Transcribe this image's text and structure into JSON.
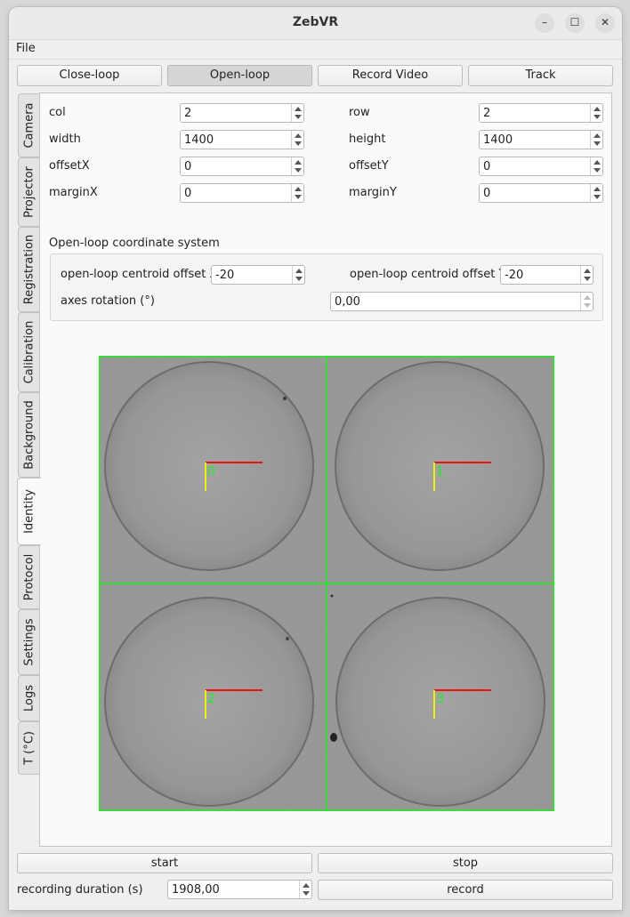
{
  "window": {
    "title": "ZebVR",
    "minimize_glyph": "–",
    "maximize_glyph": "☐",
    "close_glyph": "✕"
  },
  "menu": {
    "file": "File"
  },
  "mode_buttons": {
    "close_loop": "Close-loop",
    "open_loop": "Open-loop",
    "record_video": "Record Video",
    "track": "Track"
  },
  "tabs": [
    "Camera",
    "Projector",
    "Registration",
    "Calibration",
    "Background",
    "Identity",
    "Protocol",
    "Settings",
    "Logs",
    "T (°C)"
  ],
  "active_tab": "Identity",
  "grid": {
    "col_label": "col",
    "col_value": "2",
    "row_label": "row",
    "row_value": "2",
    "width_label": "width",
    "width_value": "1400",
    "height_label": "height",
    "height_value": "1400",
    "offsetx_label": "offsetX",
    "offsetx_value": "0",
    "offsety_label": "offsetY",
    "offsety_value": "0",
    "marginx_label": "marginX",
    "marginx_value": "0",
    "marginy_label": "marginY",
    "marginy_value": "0"
  },
  "openloop": {
    "section_title": "Open-loop coordinate system",
    "centroid_x_label": "open-loop centroid offset X",
    "centroid_x_value": "-20",
    "centroid_y_label": "open-loop centroid offset Y",
    "centroid_y_value": "-20",
    "rotation_label": "axes rotation (°)",
    "rotation_value": "0,00"
  },
  "image": {
    "well_ids": [
      "0",
      "1",
      "2",
      "3"
    ],
    "grid_color": "#22ee22",
    "x_axis_color": "#ee1111",
    "y_axis_color": "#eeee11"
  },
  "bottom": {
    "start": "start",
    "stop": "stop",
    "duration_label": "recording duration (s)",
    "duration_value": "1908,00",
    "record": "record"
  }
}
